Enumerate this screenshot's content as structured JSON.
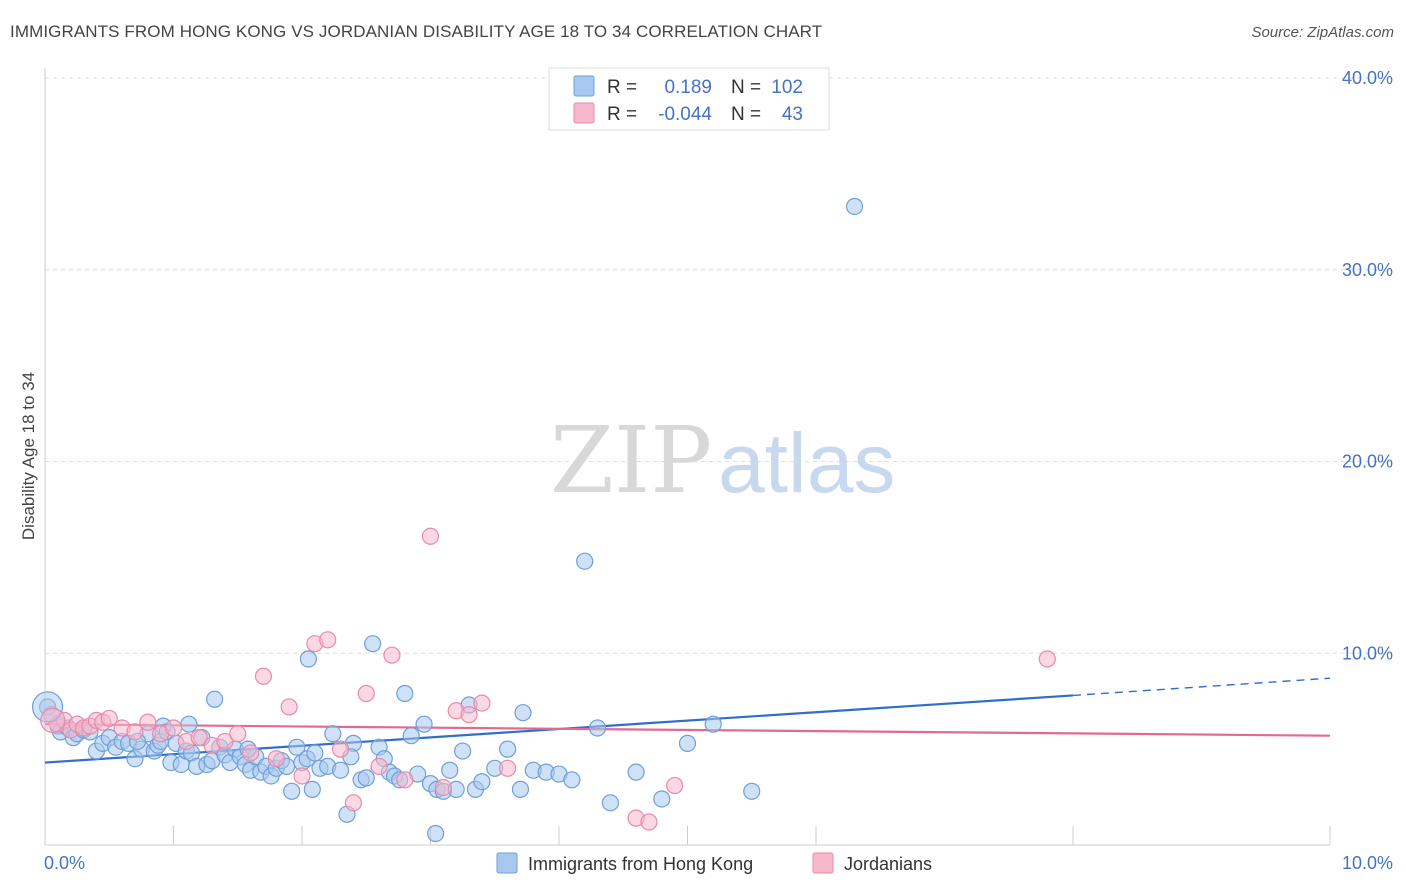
{
  "title": "IMMIGRANTS FROM HONG KONG VS JORDANIAN DISABILITY AGE 18 TO 34 CORRELATION CHART",
  "source": "Source: ZipAtlas.com",
  "watermark": {
    "zip": "ZIP",
    "atlas": "atlas"
  },
  "colors": {
    "blue_fill": "#a8c8f0",
    "blue_stroke": "#6f9fd8",
    "blue_line": "#2f6fcc",
    "pink_fill": "#f7b8cc",
    "pink_stroke": "#e98aa8",
    "pink_line": "#e26a92",
    "tick_color": "#4472c4",
    "grid": "#dddddd"
  },
  "legend": {
    "rows": [
      {
        "r_label": "R =",
        "r_value": "0.189",
        "n_label": "N =",
        "n_value": "102"
      },
      {
        "r_label": "R =",
        "r_value": "-0.044",
        "n_label": "N =",
        "n_value": "43"
      }
    ]
  },
  "chart_data": {
    "type": "scatter",
    "title": "IMMIGRANTS FROM HONG KONG VS JORDANIAN DISABILITY AGE 18 TO 34 CORRELATION CHART",
    "xlabel": "",
    "ylabel": "Disability Age 18 to 34",
    "xlim": [
      0,
      10
    ],
    "ylim": [
      0,
      40
    ],
    "x_tick_labels": [
      "0.0%",
      "10.0%"
    ],
    "y_ticks": [
      10,
      20,
      30,
      40
    ],
    "y_tick_labels": [
      "10.0%",
      "20.0%",
      "30.0%",
      "40.0%"
    ],
    "grid": true,
    "legend_placement": "top-center",
    "series": [
      {
        "name": "Immigrants from Hong Kong",
        "trend": {
          "x": [
            0,
            8
          ],
          "y": [
            4.3,
            7.8
          ],
          "dashed_to": [
            10,
            8.7
          ]
        },
        "points": [
          [
            0.02,
            7.2
          ],
          [
            0.1,
            6.2
          ],
          [
            0.12,
            5.9
          ],
          [
            0.18,
            6.1
          ],
          [
            0.22,
            5.6
          ],
          [
            0.25,
            5.8
          ],
          [
            0.3,
            6.0
          ],
          [
            0.35,
            5.9
          ],
          [
            0.4,
            4.9
          ],
          [
            0.45,
            5.3
          ],
          [
            0.5,
            5.6
          ],
          [
            0.55,
            5.1
          ],
          [
            0.6,
            5.4
          ],
          [
            0.65,
            5.3
          ],
          [
            0.7,
            4.5
          ],
          [
            0.75,
            5.0
          ],
          [
            0.8,
            5.8
          ],
          [
            0.85,
            4.9
          ],
          [
            0.88,
            5.2
          ],
          [
            0.9,
            5.4
          ],
          [
            0.92,
            6.2
          ],
          [
            0.95,
            5.9
          ],
          [
            0.98,
            4.3
          ],
          [
            1.02,
            5.3
          ],
          [
            1.06,
            4.2
          ],
          [
            1.1,
            4.9
          ],
          [
            1.14,
            4.8
          ],
          [
            1.18,
            4.1
          ],
          [
            1.22,
            5.6
          ],
          [
            1.26,
            4.2
          ],
          [
            1.3,
            4.4
          ],
          [
            1.32,
            7.6
          ],
          [
            1.36,
            5.1
          ],
          [
            1.4,
            4.7
          ],
          [
            1.44,
            4.3
          ],
          [
            1.48,
            5.0
          ],
          [
            1.52,
            4.6
          ],
          [
            1.56,
            4.2
          ],
          [
            1.6,
            3.9
          ],
          [
            1.64,
            4.6
          ],
          [
            1.68,
            3.8
          ],
          [
            1.72,
            4.1
          ],
          [
            1.76,
            3.6
          ],
          [
            1.8,
            4.0
          ],
          [
            1.84,
            4.4
          ],
          [
            1.88,
            4.1
          ],
          [
            1.92,
            2.8
          ],
          [
            1.96,
            5.1
          ],
          [
            2.0,
            4.3
          ],
          [
            2.04,
            4.5
          ],
          [
            2.08,
            2.9
          ],
          [
            2.1,
            4.8
          ],
          [
            2.14,
            4.0
          ],
          [
            2.2,
            4.1
          ],
          [
            2.24,
            5.8
          ],
          [
            2.3,
            3.9
          ],
          [
            2.35,
            1.6
          ],
          [
            2.4,
            5.3
          ],
          [
            2.46,
            3.4
          ],
          [
            2.5,
            3.5
          ],
          [
            2.55,
            10.5
          ],
          [
            2.6,
            5.1
          ],
          [
            2.64,
            4.5
          ],
          [
            2.68,
            3.8
          ],
          [
            2.72,
            3.6
          ],
          [
            2.76,
            3.4
          ],
          [
            2.8,
            7.9
          ],
          [
            2.85,
            5.7
          ],
          [
            2.9,
            3.7
          ],
          [
            2.95,
            6.3
          ],
          [
            3.0,
            3.2
          ],
          [
            3.05,
            2.9
          ],
          [
            3.1,
            2.8
          ],
          [
            3.15,
            3.9
          ],
          [
            3.2,
            2.9
          ],
          [
            3.25,
            4.9
          ],
          [
            3.3,
            7.3
          ],
          [
            3.35,
            2.9
          ],
          [
            3.4,
            3.3
          ],
          [
            3.5,
            4.0
          ],
          [
            3.6,
            5.0
          ],
          [
            3.7,
            2.9
          ],
          [
            3.8,
            3.9
          ],
          [
            3.9,
            3.8
          ],
          [
            4.0,
            3.7
          ],
          [
            4.1,
            3.4
          ],
          [
            4.2,
            14.8
          ],
          [
            4.3,
            6.1
          ],
          [
            4.4,
            2.2
          ],
          [
            4.6,
            3.8
          ],
          [
            4.8,
            2.4
          ],
          [
            5.0,
            5.3
          ],
          [
            5.2,
            6.3
          ],
          [
            5.5,
            2.8
          ],
          [
            6.3,
            33.3
          ],
          [
            2.05,
            9.7
          ],
          [
            3.04,
            0.6
          ],
          [
            0.72,
            5.4
          ],
          [
            1.58,
            5.0
          ],
          [
            2.38,
            4.6
          ],
          [
            3.72,
            6.9
          ],
          [
            1.12,
            6.3
          ]
        ]
      },
      {
        "name": "Jordanians",
        "trend": {
          "x": [
            0,
            10
          ],
          "y": [
            6.3,
            5.7
          ]
        },
        "points": [
          [
            0.05,
            6.8
          ],
          [
            0.1,
            6.3
          ],
          [
            0.15,
            6.5
          ],
          [
            0.2,
            6.0
          ],
          [
            0.25,
            6.3
          ],
          [
            0.3,
            6.1
          ],
          [
            0.35,
            6.2
          ],
          [
            0.4,
            6.5
          ],
          [
            0.45,
            6.4
          ],
          [
            0.5,
            6.6
          ],
          [
            0.6,
            6.1
          ],
          [
            0.7,
            5.9
          ],
          [
            0.8,
            6.4
          ],
          [
            0.9,
            5.8
          ],
          [
            1.0,
            6.1
          ],
          [
            1.1,
            5.4
          ],
          [
            1.2,
            5.6
          ],
          [
            1.3,
            5.2
          ],
          [
            1.4,
            5.4
          ],
          [
            1.5,
            5.8
          ],
          [
            1.6,
            4.8
          ],
          [
            1.7,
            8.8
          ],
          [
            1.8,
            4.5
          ],
          [
            1.9,
            7.2
          ],
          [
            2.0,
            3.6
          ],
          [
            2.1,
            10.5
          ],
          [
            2.2,
            10.7
          ],
          [
            2.3,
            5.0
          ],
          [
            2.4,
            2.2
          ],
          [
            2.5,
            7.9
          ],
          [
            2.6,
            4.1
          ],
          [
            2.7,
            9.9
          ],
          [
            2.8,
            3.4
          ],
          [
            3.0,
            16.1
          ],
          [
            3.1,
            3.0
          ],
          [
            3.2,
            7.0
          ],
          [
            3.3,
            6.8
          ],
          [
            3.4,
            7.4
          ],
          [
            3.6,
            4.0
          ],
          [
            4.6,
            1.4
          ],
          [
            4.7,
            1.2
          ],
          [
            4.9,
            3.1
          ],
          [
            7.8,
            9.7
          ]
        ]
      }
    ]
  }
}
